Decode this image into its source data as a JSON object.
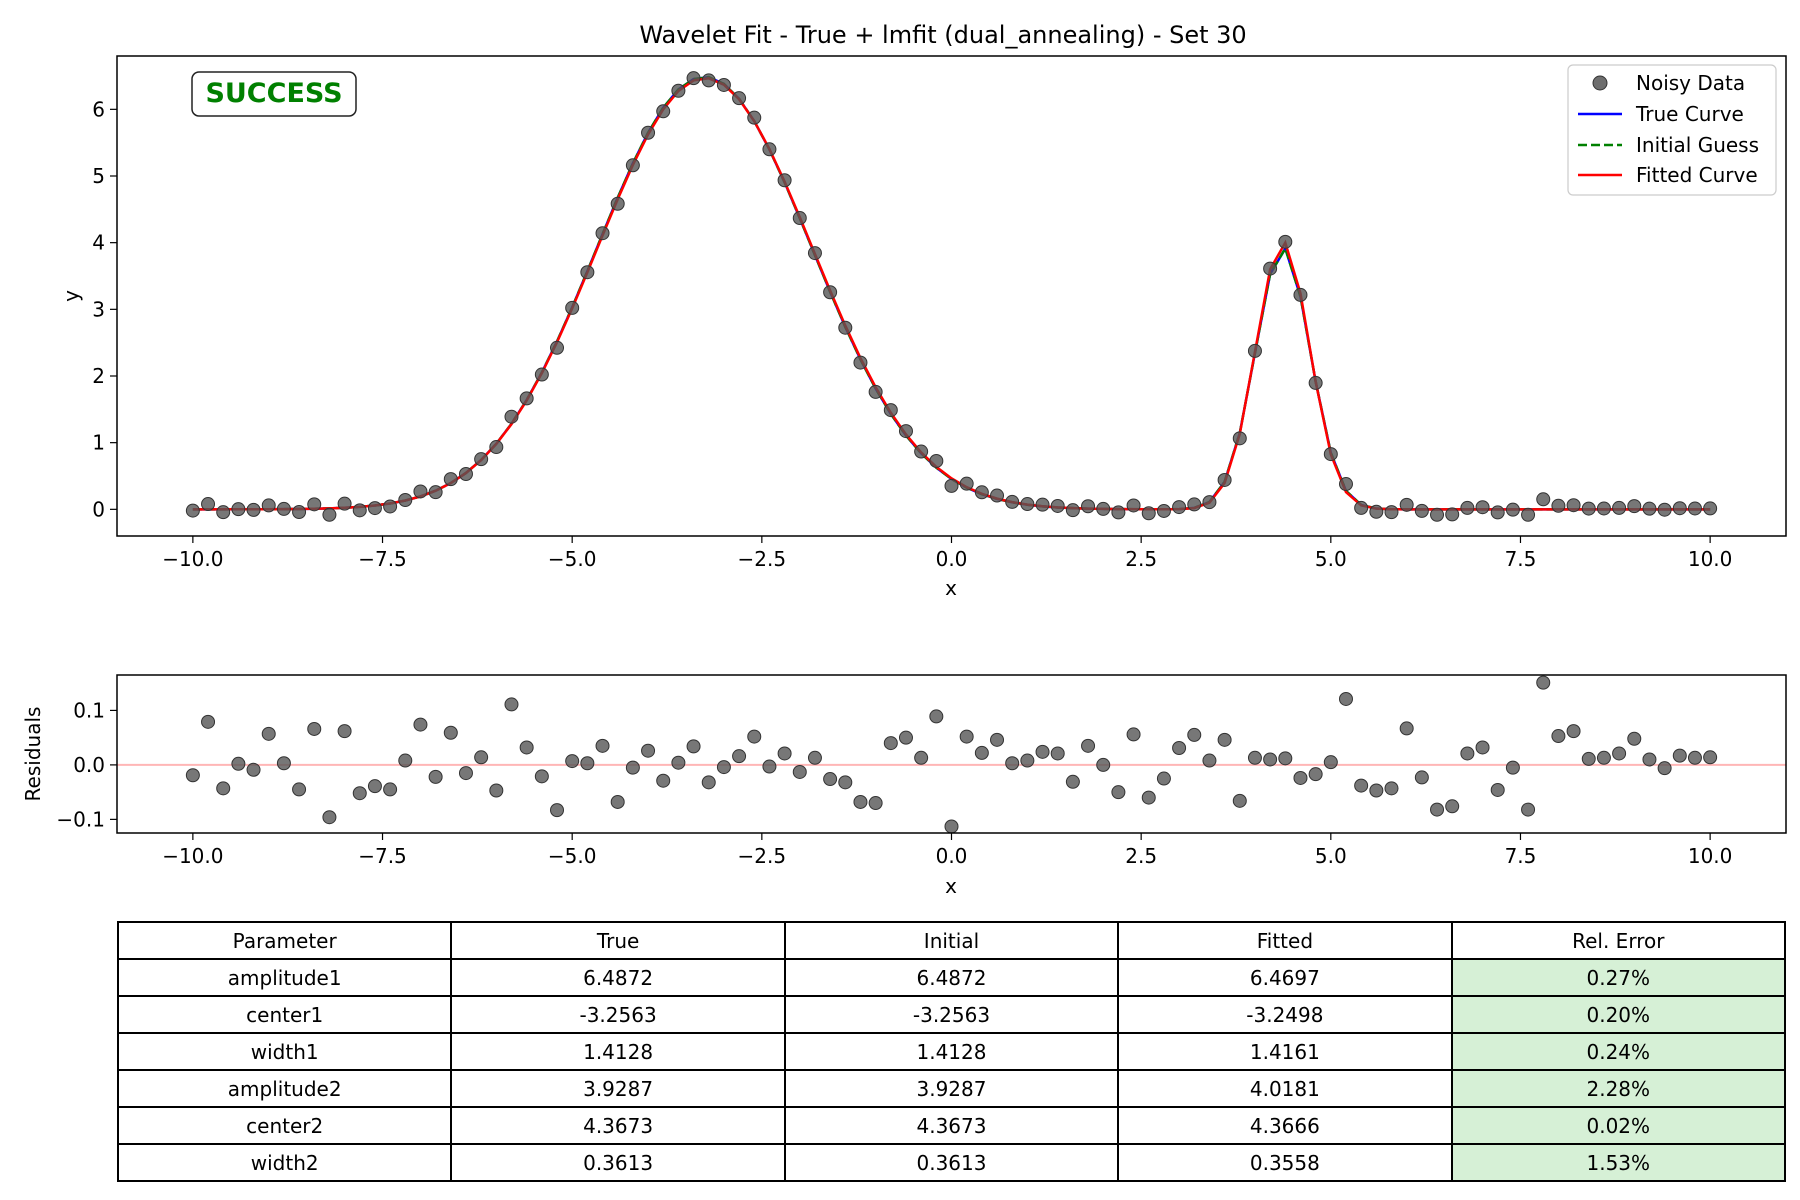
{
  "title": "Wavelet Fit - True + lmfit (dual_annealing) - Set 30",
  "status_badge": "SUCCESS",
  "colors": {
    "noisy": "#555555",
    "true_curve": "#0000ff",
    "initial_guess": "#008000",
    "fitted": "#ff0000",
    "status": "#008000",
    "residual_zero": "#ffb6b6",
    "good_error": "#d6f0d6"
  },
  "chart_data": [
    {
      "type": "line",
      "title": "Wavelet Fit - True + lmfit (dual_annealing) - Set 30",
      "xlabel": "x",
      "ylabel": "y",
      "xlim": [
        -11,
        11
      ],
      "ylim": [
        -0.4,
        6.8
      ],
      "xticks": [
        -10.0,
        -7.5,
        -5.0,
        -2.5,
        0.0,
        2.5,
        5.0,
        7.5,
        10.0
      ],
      "xtick_labels": [
        "−10.0",
        "−7.5",
        "−5.0",
        "−2.5",
        "0.0",
        "2.5",
        "5.0",
        "7.5",
        "10.0"
      ],
      "yticks": [
        0,
        1,
        2,
        3,
        4,
        5,
        6
      ],
      "ytick_labels": [
        "0",
        "1",
        "2",
        "3",
        "4",
        "5",
        "6"
      ],
      "legend": {
        "position": "top-right",
        "entries": [
          "Noisy Data",
          "True Curve",
          "Initial Guess",
          "Fitted Curve"
        ]
      },
      "model": "gaussian_sum",
      "x_range": [
        -10,
        10
      ],
      "n_points": 101,
      "series": [
        {
          "name": "Noisy Data",
          "style": "markers"
        },
        {
          "name": "True Curve",
          "style": "solid",
          "params": {
            "amplitude1": 6.4872,
            "center1": -3.2563,
            "width1": 1.4128,
            "amplitude2": 3.9287,
            "center2": 4.3673,
            "width2": 0.3613
          }
        },
        {
          "name": "Initial Guess",
          "style": "dashed",
          "params": {
            "amplitude1": 6.4872,
            "center1": -3.2563,
            "width1": 1.4128,
            "amplitude2": 3.9287,
            "center2": 4.3673,
            "width2": 0.3613
          }
        },
        {
          "name": "Fitted Curve",
          "style": "solid",
          "params": {
            "amplitude1": 6.4697,
            "center1": -3.2498,
            "width1": 1.4161,
            "amplitude2": 4.0181,
            "center2": 4.3666,
            "width2": 0.3558
          }
        }
      ]
    },
    {
      "type": "scatter",
      "title": "",
      "xlabel": "x",
      "ylabel": "Residuals",
      "xlim": [
        -11,
        11
      ],
      "ylim": [
        -0.125,
        0.165
      ],
      "xticks": [
        -10.0,
        -7.5,
        -5.0,
        -2.5,
        0.0,
        2.5,
        5.0,
        7.5,
        10.0
      ],
      "xtick_labels": [
        "−10.0",
        "−7.5",
        "−5.0",
        "−2.5",
        "0.0",
        "2.5",
        "5.0",
        "7.5",
        "10.0"
      ],
      "yticks": [
        -0.1,
        0.0,
        0.1
      ],
      "ytick_labels": [
        "−0.1",
        "0.0",
        "0.1"
      ],
      "zero_line": 0,
      "residuals": [
        -0.019,
        0.079,
        -0.043,
        0.002,
        -0.009,
        0.057,
        0.003,
        -0.045,
        0.066,
        -0.096,
        0.062,
        -0.052,
        -0.039,
        -0.045,
        0.008,
        0.074,
        -0.022,
        0.059,
        -0.015,
        0.014,
        -0.047,
        0.111,
        0.032,
        -0.021,
        -0.083,
        0.007,
        0.003,
        0.035,
        -0.068,
        -0.005,
        0.026,
        -0.029,
        0.004,
        0.034,
        -0.032,
        -0.004,
        0.016,
        0.052,
        -0.003,
        0.021,
        -0.013,
        0.013,
        -0.026,
        -0.032,
        -0.068,
        -0.07,
        0.04,
        0.05,
        0.013,
        0.089,
        -0.113,
        0.052,
        0.022,
        0.046,
        0.003,
        0.008,
        0.024,
        0.021,
        -0.031,
        0.035,
        0.0,
        -0.05,
        0.056,
        -0.06,
        -0.025,
        0.031,
        0.055,
        0.008,
        0.046,
        -0.066,
        0.013,
        0.01,
        0.012,
        -0.024,
        -0.017,
        0.005,
        0.121,
        -0.038,
        -0.047,
        -0.043,
        0.067,
        -0.023,
        -0.082,
        -0.076,
        0.021,
        0.032,
        -0.046,
        -0.005,
        -0.082,
        0.151,
        0.053,
        0.062,
        0.011,
        0.013,
        0.021,
        0.048,
        0.01,
        -0.006,
        0.017,
        0.013,
        0.014
      ]
    }
  ],
  "table": {
    "headers": [
      "Parameter",
      "True",
      "Initial",
      "Fitted",
      "Rel. Error"
    ],
    "rows": [
      [
        "amplitude1",
        "6.4872",
        "6.4872",
        "6.4697",
        "0.27%"
      ],
      [
        "center1",
        "-3.2563",
        "-3.2563",
        "-3.2498",
        "0.20%"
      ],
      [
        "width1",
        "1.4128",
        "1.4128",
        "1.4161",
        "0.24%"
      ],
      [
        "amplitude2",
        "3.9287",
        "3.9287",
        "4.0181",
        "2.28%"
      ],
      [
        "center2",
        "4.3673",
        "4.3673",
        "4.3666",
        "0.02%"
      ],
      [
        "width2",
        "0.3613",
        "0.3613",
        "0.3558",
        "1.53%"
      ]
    ]
  }
}
